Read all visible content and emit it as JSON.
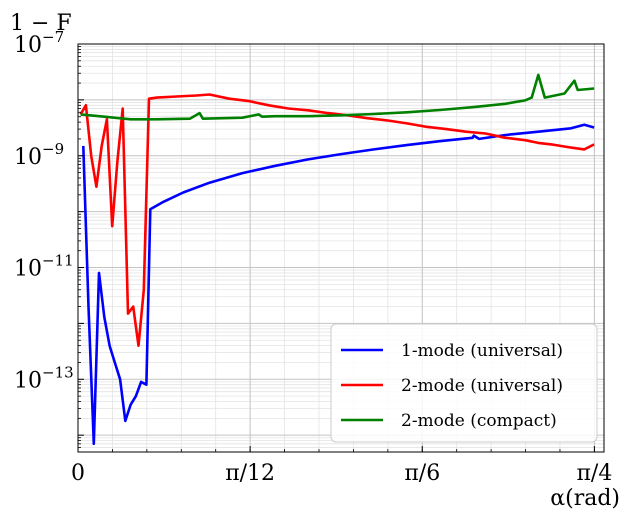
{
  "chart_data": {
    "type": "line",
    "title": "",
    "ylabel": "1 − F",
    "xlabel": "α(rad)",
    "yscale": "log",
    "ylim": [
      5e-15,
      1e-07
    ],
    "xlim": [
      0,
      0.8
    ],
    "grid": true,
    "legend_position": "bottom-right",
    "x_ticks": [
      {
        "value": 0,
        "label": "0"
      },
      {
        "value": 0.261799,
        "label": "π/12"
      },
      {
        "value": 0.523599,
        "label": "π/6"
      },
      {
        "value": 0.785398,
        "label": "π/4"
      }
    ],
    "y_ticks": [
      {
        "value": 1e-07,
        "base": "10",
        "exp": "−7"
      },
      {
        "value": 1e-09,
        "base": "10",
        "exp": "−9"
      },
      {
        "value": 1e-11,
        "base": "10",
        "exp": "−11"
      },
      {
        "value": 1e-13,
        "base": "10",
        "exp": "−13"
      }
    ],
    "series": [
      {
        "name": "1-mode (universal)",
        "color": "#0000ff",
        "points": [
          [
            0.008,
            1.5e-09
          ],
          [
            0.016,
            2e-12
          ],
          [
            0.024,
            7e-15
          ],
          [
            0.032,
            8e-12
          ],
          [
            0.04,
            1.3e-12
          ],
          [
            0.048,
            4e-13
          ],
          [
            0.056,
            2e-13
          ],
          [
            0.064,
            1e-13
          ],
          [
            0.072,
            1.8e-14
          ],
          [
            0.08,
            3.5e-14
          ],
          [
            0.088,
            5e-14
          ],
          [
            0.096,
            9e-14
          ],
          [
            0.104,
            8e-14
          ],
          [
            0.11,
            1.1e-10
          ],
          [
            0.13,
            1.5e-10
          ],
          [
            0.16,
            2.2e-10
          ],
          [
            0.2,
            3.3e-10
          ],
          [
            0.25,
            4.9e-10
          ],
          [
            0.3,
            6.6e-10
          ],
          [
            0.35,
            8.6e-10
          ],
          [
            0.4,
            1.07e-09
          ],
          [
            0.45,
            1.3e-09
          ],
          [
            0.5,
            1.55e-09
          ],
          [
            0.55,
            1.82e-09
          ],
          [
            0.6,
            2.1e-09
          ],
          [
            0.602,
            2.3e-09
          ],
          [
            0.61,
            2e-09
          ],
          [
            0.65,
            2.35e-09
          ],
          [
            0.7,
            2.7e-09
          ],
          [
            0.75,
            3.1e-09
          ],
          [
            0.77,
            3.6e-09
          ],
          [
            0.785,
            3.2e-09
          ]
        ]
      },
      {
        "name": "2-mode (universal)",
        "color": "#ff0000",
        "points": [
          [
            0.004,
            5.5e-09
          ],
          [
            0.012,
            8e-09
          ],
          [
            0.02,
            1e-09
          ],
          [
            0.028,
            2.8e-10
          ],
          [
            0.036,
            1.5e-09
          ],
          [
            0.044,
            4.5e-09
          ],
          [
            0.052,
            5.5e-11
          ],
          [
            0.06,
            8e-10
          ],
          [
            0.068,
            7e-09
          ],
          [
            0.076,
            1.5e-12
          ],
          [
            0.084,
            2e-12
          ],
          [
            0.092,
            4e-13
          ],
          [
            0.1,
            4e-12
          ],
          [
            0.108,
            1.05e-08
          ],
          [
            0.12,
            1.1e-08
          ],
          [
            0.15,
            1.15e-08
          ],
          [
            0.18,
            1.2e-08
          ],
          [
            0.2,
            1.25e-08
          ],
          [
            0.23,
            1.05e-08
          ],
          [
            0.26,
            9.5e-09
          ],
          [
            0.29,
            8e-09
          ],
          [
            0.32,
            7e-09
          ],
          [
            0.35,
            6.5e-09
          ],
          [
            0.38,
            5.8e-09
          ],
          [
            0.41,
            5.3e-09
          ],
          [
            0.44,
            4.7e-09
          ],
          [
            0.47,
            4.3e-09
          ],
          [
            0.5,
            3.8e-09
          ],
          [
            0.53,
            3.3e-09
          ],
          [
            0.56,
            3e-09
          ],
          [
            0.59,
            2.7e-09
          ],
          [
            0.62,
            2.5e-09
          ],
          [
            0.65,
            2.1e-09
          ],
          [
            0.68,
            1.9e-09
          ],
          [
            0.7,
            1.7e-09
          ],
          [
            0.72,
            1.6e-09
          ],
          [
            0.75,
            1.4e-09
          ],
          [
            0.77,
            1.3e-09
          ],
          [
            0.785,
            1.6e-09
          ]
        ]
      },
      {
        "name": "2-mode (compact)",
        "color": "#008000",
        "points": [
          [
            0.004,
            5.5e-09
          ],
          [
            0.04,
            5e-09
          ],
          [
            0.08,
            4.5e-09
          ],
          [
            0.12,
            4.5e-09
          ],
          [
            0.17,
            4.6e-09
          ],
          [
            0.185,
            5.8e-09
          ],
          [
            0.19,
            4.6e-09
          ],
          [
            0.25,
            4.8e-09
          ],
          [
            0.275,
            5.5e-09
          ],
          [
            0.28,
            5e-09
          ],
          [
            0.3,
            5.1e-09
          ],
          [
            0.35,
            5.1e-09
          ],
          [
            0.4,
            5.3e-09
          ],
          [
            0.45,
            5.6e-09
          ],
          [
            0.5,
            6e-09
          ],
          [
            0.55,
            6.6e-09
          ],
          [
            0.6,
            7.4e-09
          ],
          [
            0.65,
            8.5e-09
          ],
          [
            0.68,
            9.8e-09
          ],
          [
            0.69,
            1.1e-08
          ],
          [
            0.7,
            2.8e-08
          ],
          [
            0.71,
            1.1e-08
          ],
          [
            0.74,
            1.3e-08
          ],
          [
            0.755,
            2.2e-08
          ],
          [
            0.76,
            1.5e-08
          ],
          [
            0.785,
            1.6e-08
          ]
        ]
      }
    ]
  }
}
